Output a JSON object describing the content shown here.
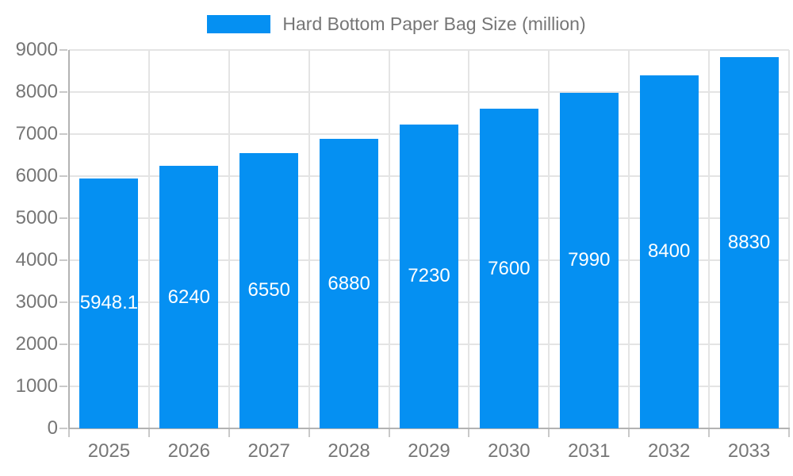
{
  "chart_data": {
    "type": "bar",
    "title": "Hard Bottom Paper Bag Size (million)",
    "legend_label": "Hard Bottom Paper Bag Size (million)",
    "legend_position": "top-center",
    "categories": [
      "2025",
      "2026",
      "2027",
      "2028",
      "2029",
      "2030",
      "2031",
      "2032",
      "2033"
    ],
    "values": [
      5948.1,
      6240,
      6550,
      6880,
      7230,
      7600,
      7990,
      8400,
      8830
    ],
    "data_labels": [
      "5948.1",
      "6240",
      "6550",
      "6880",
      "7230",
      "7600",
      "7990",
      "8400",
      "8830"
    ],
    "data_label_position": "inside-center",
    "xlabel": "",
    "ylabel": "",
    "ylim": [
      0,
      9000
    ],
    "ytick_step": 1000,
    "ytick_labels": [
      "0",
      "1000",
      "2000",
      "3000",
      "4000",
      "5000",
      "6000",
      "7000",
      "8000",
      "9000"
    ],
    "grid": true,
    "colors": {
      "bar": "#0590f2",
      "axis_text": "#767676",
      "grid_line": "#e4e4e4",
      "axis_line": "#b3b3b3",
      "tick": "#c9c9c9",
      "data_label_text": "#ffffff",
      "background": "#ffffff"
    }
  }
}
